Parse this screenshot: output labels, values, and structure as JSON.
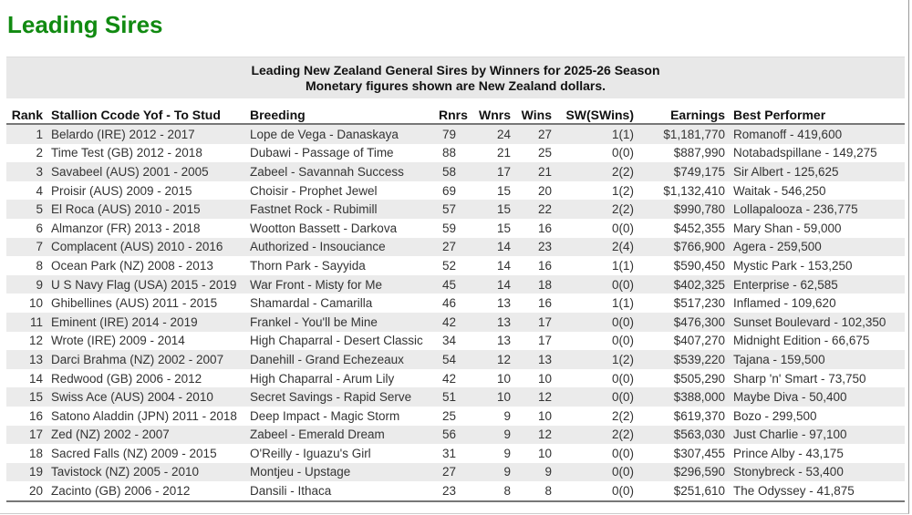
{
  "page": {
    "title": "Leading Sires",
    "title_color": "#118a11"
  },
  "caption": {
    "line1": "Leading New Zealand General Sires by Winners for 2025-26 Season",
    "line2": "Monetary figures shown are New Zealand dollars."
  },
  "table": {
    "headers": [
      "Rank",
      "Stallion Ccode Yof - To Stud",
      "Breeding",
      "Rnrs",
      "Wnrs",
      "Wins",
      "SW(SWins)",
      "Earnings",
      "Best Performer"
    ],
    "rows": [
      [
        "1",
        "Belardo (IRE) 2012 - 2017",
        "Lope de Vega - Danaskaya",
        "79",
        "24",
        "27",
        "1(1)",
        "$1,181,770",
        "Romanoff - 419,600"
      ],
      [
        "2",
        "Time Test (GB) 2012 - 2018",
        "Dubawi - Passage of Time",
        "88",
        "21",
        "25",
        "0(0)",
        "$887,990",
        "Notabadspillane - 149,275"
      ],
      [
        "3",
        "Savabeel (AUS) 2001 - 2005",
        "Zabeel - Savannah Success",
        "58",
        "17",
        "21",
        "2(2)",
        "$749,175",
        "Sir Albert - 125,625"
      ],
      [
        "4",
        "Proisir (AUS) 2009 - 2015",
        "Choisir - Prophet Jewel",
        "69",
        "15",
        "20",
        "1(2)",
        "$1,132,410",
        "Waitak - 546,250"
      ],
      [
        "5",
        "El Roca (AUS) 2010 - 2015",
        "Fastnet Rock - Rubimill",
        "57",
        "15",
        "22",
        "2(2)",
        "$990,780",
        "Lollapalooza - 236,775"
      ],
      [
        "6",
        "Almanzor (FR) 2013 - 2018",
        "Wootton Bassett - Darkova",
        "59",
        "15",
        "16",
        "0(0)",
        "$452,355",
        "Mary Shan - 59,000"
      ],
      [
        "7",
        "Complacent (AUS) 2010 - 2016",
        "Authorized - Insouciance",
        "27",
        "14",
        "23",
        "2(4)",
        "$766,900",
        "Agera - 259,500"
      ],
      [
        "8",
        "Ocean Park (NZ) 2008 - 2013",
        "Thorn Park - Sayyida",
        "52",
        "14",
        "16",
        "1(1)",
        "$590,450",
        "Mystic Park - 153,250"
      ],
      [
        "9",
        "U S Navy Flag (USA) 2015 - 2019",
        "War Front - Misty for Me",
        "45",
        "14",
        "18",
        "0(0)",
        "$402,325",
        "Enterprise - 62,585"
      ],
      [
        "10",
        "Ghibellines (AUS) 2011 - 2015",
        "Shamardal - Camarilla",
        "46",
        "13",
        "16",
        "1(1)",
        "$517,230",
        "Inflamed - 109,620"
      ],
      [
        "11",
        "Eminent (IRE) 2014 - 2019",
        "Frankel - You'll be Mine",
        "42",
        "13",
        "17",
        "0(0)",
        "$476,300",
        "Sunset Boulevard - 102,350"
      ],
      [
        "12",
        "Wrote (IRE) 2009 - 2014",
        "High Chaparral - Desert Classic",
        "34",
        "13",
        "17",
        "0(0)",
        "$407,270",
        "Midnight Edition - 66,675"
      ],
      [
        "13",
        "Darci Brahma (NZ) 2002 - 2007",
        "Danehill - Grand Echezeaux",
        "54",
        "12",
        "13",
        "1(2)",
        "$539,220",
        "Tajana - 159,500"
      ],
      [
        "14",
        "Redwood (GB) 2006 - 2012",
        "High Chaparral - Arum Lily",
        "42",
        "10",
        "10",
        "0(0)",
        "$505,290",
        "Sharp 'n' Smart - 73,750"
      ],
      [
        "15",
        "Swiss Ace (AUS) 2004 - 2010",
        "Secret Savings - Rapid Serve",
        "51",
        "10",
        "12",
        "0(0)",
        "$388,000",
        "Maybe Diva - 50,400"
      ],
      [
        "16",
        "Satono Aladdin (JPN) 2011 - 2018",
        "Deep Impact - Magic Storm",
        "25",
        "9",
        "10",
        "2(2)",
        "$619,370",
        "Bozo - 299,500"
      ],
      [
        "17",
        "Zed (NZ) 2002 - 2007",
        "Zabeel - Emerald Dream",
        "56",
        "9",
        "12",
        "2(2)",
        "$563,030",
        "Just Charlie - 97,100"
      ],
      [
        "18",
        "Sacred Falls (NZ) 2009 - 2015",
        "O'Reilly - Iguazu's Girl",
        "31",
        "9",
        "10",
        "0(0)",
        "$307,455",
        "Prince Alby - 43,175"
      ],
      [
        "19",
        "Tavistock (NZ) 2005 - 2010",
        "Montjeu - Upstage",
        "27",
        "9",
        "9",
        "0(0)",
        "$296,590",
        "Stonybreck - 53,400"
      ],
      [
        "20",
        "Zacinto (GB) 2006 - 2012",
        "Dansili - Ithaca",
        "23",
        "8",
        "8",
        "0(0)",
        "$251,610",
        "The Odyssey - 41,875"
      ]
    ]
  }
}
